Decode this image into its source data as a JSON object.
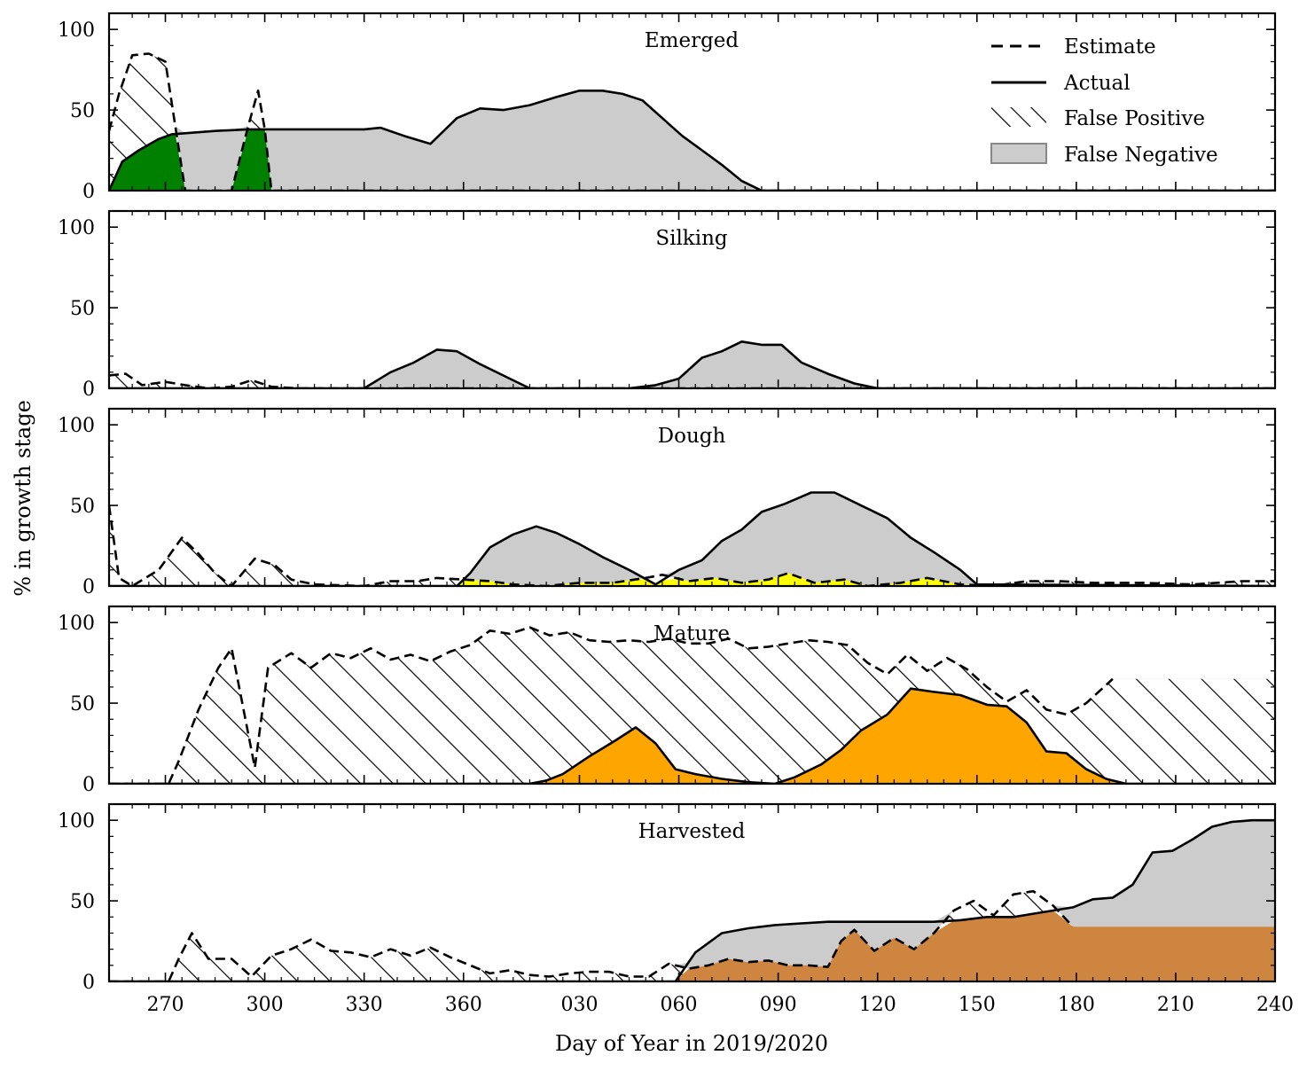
{
  "chart_data": {
    "type": "area",
    "xlabel": "Day of Year in 2019/2020",
    "ylabel": "% in growth stage",
    "xlim": [
      253,
      241
    ],
    "ylim": [
      0,
      110
    ],
    "xticks": [
      {
        "t": 270,
        "label": "270"
      },
      {
        "t": 300,
        "label": "300"
      },
      {
        "t": 330,
        "label": "330"
      },
      {
        "t": 360,
        "label": "360"
      },
      {
        "t": 395,
        "label": "030"
      },
      {
        "t": 425,
        "label": "060"
      },
      {
        "t": 455,
        "label": "090"
      },
      {
        "t": 485,
        "label": "120"
      },
      {
        "t": 515,
        "label": "150"
      },
      {
        "t": 545,
        "label": "180"
      },
      {
        "t": 575,
        "label": "210"
      },
      {
        "t": 605,
        "label": "240"
      }
    ],
    "yticks": [
      "0",
      "50",
      "100"
    ],
    "legend": {
      "position": "top-right",
      "entries": [
        {
          "label": "Estimate",
          "style": "dashed"
        },
        {
          "label": "Actual",
          "style": "solid"
        },
        {
          "label": "False Positive",
          "style": "hatch"
        },
        {
          "label": "False Negative",
          "style": "gray-fill"
        }
      ]
    },
    "panels": [
      {
        "title": "Emerged",
        "overlap_color": "#008000",
        "estimate": [
          [
            253,
            37
          ],
          [
            256,
            60
          ],
          [
            260,
            84
          ],
          [
            265,
            85
          ],
          [
            270,
            80
          ],
          [
            273,
            40
          ],
          [
            276,
            0
          ],
          [
            290,
            0
          ],
          [
            295,
            40
          ],
          [
            298,
            62
          ],
          [
            300,
            38
          ],
          [
            302,
            0
          ],
          [
            605,
            0
          ]
        ],
        "actual": [
          [
            253,
            0
          ],
          [
            257,
            18
          ],
          [
            262,
            25
          ],
          [
            268,
            32
          ],
          [
            272,
            35
          ],
          [
            285,
            37
          ],
          [
            295,
            38
          ],
          [
            330,
            38
          ],
          [
            335,
            39
          ],
          [
            342,
            34
          ],
          [
            350,
            29
          ],
          [
            358,
            45
          ],
          [
            365,
            51
          ],
          [
            372,
            50
          ],
          [
            380,
            53
          ],
          [
            388,
            58
          ],
          [
            395,
            62
          ],
          [
            402,
            62
          ],
          [
            408,
            60
          ],
          [
            414,
            56
          ],
          [
            420,
            45
          ],
          [
            426,
            34
          ],
          [
            432,
            25
          ],
          [
            438,
            16
          ],
          [
            444,
            6
          ],
          [
            450,
            0
          ],
          [
            605,
            0
          ]
        ]
      },
      {
        "title": "Silking",
        "overlap_color": "#0000ff",
        "estimate": [
          [
            253,
            8
          ],
          [
            258,
            9
          ],
          [
            263,
            2
          ],
          [
            270,
            4
          ],
          [
            276,
            2
          ],
          [
            283,
            0
          ],
          [
            290,
            1
          ],
          [
            296,
            5
          ],
          [
            302,
            1
          ],
          [
            310,
            0
          ],
          [
            605,
            0
          ]
        ],
        "actual": [
          [
            253,
            0
          ],
          [
            330,
            0
          ],
          [
            338,
            10
          ],
          [
            345,
            16
          ],
          [
            352,
            24
          ],
          [
            358,
            23
          ],
          [
            365,
            15
          ],
          [
            372,
            8
          ],
          [
            380,
            0
          ],
          [
            410,
            0
          ],
          [
            418,
            2
          ],
          [
            425,
            6
          ],
          [
            432,
            19
          ],
          [
            438,
            23
          ],
          [
            444,
            29
          ],
          [
            450,
            27
          ],
          [
            456,
            27
          ],
          [
            462,
            16
          ],
          [
            470,
            9
          ],
          [
            478,
            3
          ],
          [
            485,
            0
          ],
          [
            605,
            0
          ]
        ]
      },
      {
        "title": "Dough",
        "overlap_color": "#ffff00",
        "estimate": [
          [
            253,
            50
          ],
          [
            256,
            5
          ],
          [
            260,
            0
          ],
          [
            268,
            10
          ],
          [
            275,
            30
          ],
          [
            280,
            20
          ],
          [
            285,
            8
          ],
          [
            290,
            0
          ],
          [
            297,
            17
          ],
          [
            303,
            13
          ],
          [
            308,
            4
          ],
          [
            315,
            1
          ],
          [
            330,
            0
          ],
          [
            338,
            3
          ],
          [
            346,
            3
          ],
          [
            352,
            5
          ],
          [
            360,
            4
          ],
          [
            368,
            3
          ],
          [
            375,
            1
          ],
          [
            385,
            0
          ],
          [
            395,
            2
          ],
          [
            405,
            2
          ],
          [
            415,
            5
          ],
          [
            420,
            7
          ],
          [
            428,
            3
          ],
          [
            436,
            5
          ],
          [
            444,
            2
          ],
          [
            452,
            4
          ],
          [
            458,
            8
          ],
          [
            466,
            2
          ],
          [
            475,
            4
          ],
          [
            482,
            0
          ],
          [
            492,
            2
          ],
          [
            500,
            5
          ],
          [
            510,
            1
          ],
          [
            520,
            0
          ],
          [
            530,
            3
          ],
          [
            540,
            3
          ],
          [
            550,
            2
          ],
          [
            565,
            2
          ],
          [
            580,
            1
          ],
          [
            595,
            3
          ],
          [
            605,
            3
          ]
        ],
        "actual": [
          [
            253,
            0
          ],
          [
            358,
            0
          ],
          [
            362,
            8
          ],
          [
            368,
            24
          ],
          [
            375,
            32
          ],
          [
            382,
            37
          ],
          [
            388,
            33
          ],
          [
            395,
            26
          ],
          [
            402,
            18
          ],
          [
            410,
            10
          ],
          [
            418,
            1
          ],
          [
            425,
            10
          ],
          [
            432,
            16
          ],
          [
            438,
            28
          ],
          [
            444,
            35
          ],
          [
            450,
            46
          ],
          [
            457,
            51
          ],
          [
            465,
            58
          ],
          [
            472,
            58
          ],
          [
            480,
            50
          ],
          [
            488,
            42
          ],
          [
            495,
            30
          ],
          [
            502,
            21
          ],
          [
            510,
            10
          ],
          [
            515,
            1
          ],
          [
            605,
            0
          ]
        ]
      },
      {
        "title": "Mature",
        "overlap_color": "#ffa500",
        "estimate": [
          [
            253,
            0
          ],
          [
            271,
            0
          ],
          [
            274,
            14
          ],
          [
            280,
            46
          ],
          [
            286,
            72
          ],
          [
            290,
            84
          ],
          [
            297,
            10
          ],
          [
            301,
            72
          ],
          [
            308,
            81
          ],
          [
            314,
            72
          ],
          [
            320,
            81
          ],
          [
            326,
            78
          ],
          [
            332,
            84
          ],
          [
            338,
            77
          ],
          [
            344,
            80
          ],
          [
            350,
            76
          ],
          [
            356,
            82
          ],
          [
            362,
            86
          ],
          [
            368,
            95
          ],
          [
            374,
            93
          ],
          [
            380,
            97
          ],
          [
            386,
            92
          ],
          [
            392,
            94
          ],
          [
            398,
            89
          ],
          [
            404,
            88
          ],
          [
            410,
            89
          ],
          [
            416,
            88
          ],
          [
            422,
            90
          ],
          [
            428,
            87
          ],
          [
            434,
            87
          ],
          [
            440,
            90
          ],
          [
            446,
            84
          ],
          [
            452,
            85
          ],
          [
            458,
            87
          ],
          [
            464,
            89
          ],
          [
            470,
            88
          ],
          [
            476,
            86
          ],
          [
            482,
            75
          ],
          [
            488,
            68
          ],
          [
            494,
            80
          ],
          [
            500,
            70
          ],
          [
            506,
            78
          ],
          [
            512,
            71
          ],
          [
            518,
            60
          ],
          [
            524,
            51
          ],
          [
            530,
            58
          ],
          [
            536,
            46
          ],
          [
            542,
            43
          ],
          [
            548,
            50
          ],
          [
            556,
            65
          ]
        ],
        "actual": [
          [
            253,
            0
          ],
          [
            380,
            0
          ],
          [
            385,
            2
          ],
          [
            390,
            6
          ],
          [
            398,
            17
          ],
          [
            406,
            27
          ],
          [
            412,
            35
          ],
          [
            418,
            25
          ],
          [
            424,
            9
          ],
          [
            430,
            6
          ],
          [
            438,
            3
          ],
          [
            446,
            1
          ],
          [
            454,
            0
          ],
          [
            460,
            4
          ],
          [
            468,
            12
          ],
          [
            474,
            21
          ],
          [
            480,
            33
          ],
          [
            488,
            43
          ],
          [
            495,
            59
          ],
          [
            502,
            57
          ],
          [
            510,
            55
          ],
          [
            518,
            49
          ],
          [
            524,
            48
          ],
          [
            530,
            38
          ],
          [
            536,
            20
          ],
          [
            542,
            19
          ],
          [
            548,
            9
          ],
          [
            554,
            3
          ],
          [
            560,
            0
          ],
          [
            605,
            0
          ]
        ]
      },
      {
        "title": "Harvested",
        "overlap_color": "#cd853f",
        "estimate": [
          [
            253,
            0
          ],
          [
            271,
            0
          ],
          [
            274,
            14
          ],
          [
            278,
            30
          ],
          [
            283,
            14
          ],
          [
            290,
            14
          ],
          [
            296,
            3
          ],
          [
            302,
            16
          ],
          [
            308,
            20
          ],
          [
            314,
            26
          ],
          [
            320,
            19
          ],
          [
            326,
            18
          ],
          [
            332,
            15
          ],
          [
            338,
            20
          ],
          [
            344,
            16
          ],
          [
            350,
            21
          ],
          [
            356,
            15
          ],
          [
            362,
            10
          ],
          [
            368,
            5
          ],
          [
            374,
            7
          ],
          [
            380,
            4
          ],
          [
            386,
            3
          ],
          [
            392,
            5
          ],
          [
            398,
            6
          ],
          [
            404,
            6
          ],
          [
            410,
            3
          ],
          [
            416,
            3
          ],
          [
            422,
            11
          ],
          [
            428,
            8
          ],
          [
            434,
            10
          ],
          [
            440,
            14
          ],
          [
            446,
            12
          ],
          [
            452,
            13
          ],
          [
            458,
            10
          ],
          [
            464,
            10
          ],
          [
            470,
            9
          ],
          [
            474,
            25
          ],
          [
            478,
            32
          ],
          [
            484,
            19
          ],
          [
            490,
            27
          ],
          [
            496,
            20
          ],
          [
            502,
            30
          ],
          [
            508,
            44
          ],
          [
            514,
            50
          ],
          [
            520,
            41
          ],
          [
            526,
            54
          ],
          [
            532,
            56
          ],
          [
            538,
            47
          ],
          [
            544,
            34
          ]
        ],
        "actual": [
          [
            253,
            0
          ],
          [
            424,
            0
          ],
          [
            430,
            18
          ],
          [
            438,
            30
          ],
          [
            446,
            33
          ],
          [
            454,
            35
          ],
          [
            462,
            36
          ],
          [
            470,
            37
          ],
          [
            478,
            37
          ],
          [
            486,
            37
          ],
          [
            494,
            37
          ],
          [
            502,
            37
          ],
          [
            510,
            38
          ],
          [
            518,
            40
          ],
          [
            526,
            40
          ],
          [
            532,
            42
          ],
          [
            538,
            44
          ],
          [
            544,
            46
          ],
          [
            550,
            51
          ],
          [
            556,
            52
          ],
          [
            562,
            60
          ],
          [
            568,
            80
          ],
          [
            574,
            81
          ],
          [
            580,
            88
          ],
          [
            586,
            96
          ],
          [
            592,
            99
          ],
          [
            598,
            100
          ],
          [
            605,
            100
          ]
        ]
      }
    ]
  }
}
